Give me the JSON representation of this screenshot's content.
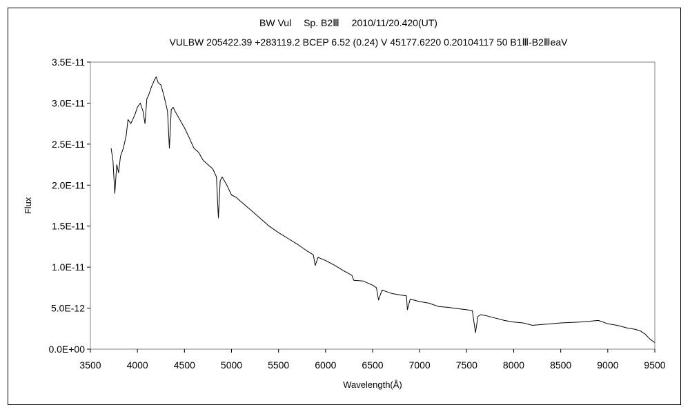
{
  "chart_data": {
    "type": "line",
    "title": "BW Vul　 Sp. B2Ⅲ　 2010/11/20.420(UT)",
    "subtitle": "VULBW 205422.39 +283119.2 BCEP 6.52 (0.24) V 45177.6220 0.20104117 50 B1Ⅲ-B2ⅢeaV",
    "xlabel": "Wavelength(Å)",
    "ylabel": "Flux",
    "xlim": [
      3500,
      9500
    ],
    "ylim": [
      0,
      3.5e-11
    ],
    "x_ticks": [
      "3500",
      "4000",
      "4500",
      "5000",
      "5500",
      "6000",
      "6500",
      "7000",
      "7500",
      "8000",
      "8500",
      "9000",
      "9500"
    ],
    "y_ticks": [
      "0.0E+00",
      "5.0E-12",
      "1.0E-11",
      "1.5E-11",
      "2.0E-11",
      "2.5E-11",
      "3.0E-11",
      "3.5E-11"
    ],
    "grid": false,
    "legend": "none",
    "series": [
      {
        "color": "#000000",
        "x": [
          3720,
          3740,
          3760,
          3780,
          3800,
          3820,
          3850,
          3880,
          3900,
          3930,
          3970,
          4000,
          4030,
          4060,
          4080,
          4100,
          4120,
          4150,
          4180,
          4200,
          4220,
          4250,
          4280,
          4300,
          4320,
          4340,
          4360,
          4380,
          4400,
          4450,
          4500,
          4550,
          4600,
          4650,
          4700,
          4750,
          4800,
          4840,
          4861,
          4880,
          4900,
          4950,
          5000,
          5050,
          5100,
          5200,
          5300,
          5400,
          5500,
          5600,
          5700,
          5800,
          5870,
          5890,
          5920,
          6000,
          6100,
          6200,
          6280,
          6300,
          6400,
          6500,
          6540,
          6563,
          6600,
          6650,
          6700,
          6800,
          6860,
          6870,
          6900,
          7000,
          7100,
          7200,
          7300,
          7400,
          7500,
          7560,
          7594,
          7620,
          7650,
          7700,
          7800,
          7900,
          8000,
          8100,
          8200,
          8300,
          8400,
          8500,
          8600,
          8700,
          8800,
          8900,
          9000,
          9100,
          9200,
          9300,
          9350,
          9400,
          9450,
          9500
        ],
        "y": [
          2.45e-11,
          2.3e-11,
          1.9e-11,
          2.25e-11,
          2.15e-11,
          2.35e-11,
          2.45e-11,
          2.6e-11,
          2.8e-11,
          2.75e-11,
          2.85e-11,
          2.95e-11,
          3e-11,
          2.9e-11,
          2.75e-11,
          3.05e-11,
          3.1e-11,
          3.2e-11,
          3.28e-11,
          3.32e-11,
          3.25e-11,
          3.22e-11,
          3.1e-11,
          3e-11,
          2.9e-11,
          2.45e-11,
          2.92e-11,
          2.95e-11,
          2.9e-11,
          2.8e-11,
          2.7e-11,
          2.58e-11,
          2.45e-11,
          2.4e-11,
          2.3e-11,
          2.25e-11,
          2.2e-11,
          2.1e-11,
          1.6e-11,
          2.05e-11,
          2.1e-11,
          2e-11,
          1.88e-11,
          1.85e-11,
          1.8e-11,
          1.7e-11,
          1.6e-11,
          1.5e-11,
          1.42e-11,
          1.35e-11,
          1.28e-11,
          1.2e-11,
          1.15e-11,
          1.02e-11,
          1.12e-11,
          1.08e-11,
          1.02e-11,
          9.5e-12,
          9e-12,
          8.4e-12,
          8.3e-12,
          7.8e-12,
          7.5e-12,
          6e-12,
          7.2e-12,
          7e-12,
          6.8e-12,
          6.6e-12,
          6.5e-12,
          4.8e-12,
          6.1e-12,
          5.8e-12,
          5.6e-12,
          5.2e-12,
          5.1e-12,
          4.95e-12,
          4.8e-12,
          4.7e-12,
          2e-12,
          4e-12,
          4.2e-12,
          4.1e-12,
          3.8e-12,
          3.5e-12,
          3.3e-12,
          3.2e-12,
          2.9e-12,
          3e-12,
          3.1e-12,
          3.2e-12,
          3.25e-12,
          3.3e-12,
          3.4e-12,
          3.5e-12,
          3.1e-12,
          2.9e-12,
          2.6e-12,
          2.4e-12,
          2.2e-12,
          1.8e-12,
          1.2e-12,
          8e-13
        ]
      }
    ]
  }
}
